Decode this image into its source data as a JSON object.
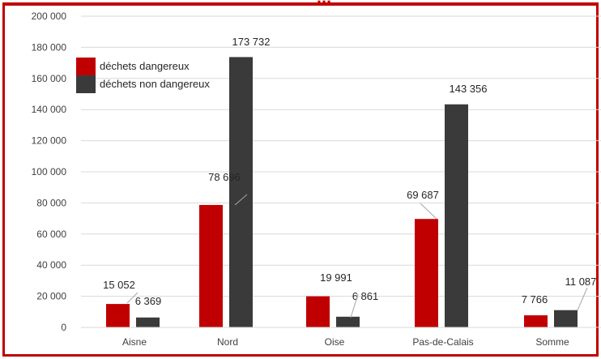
{
  "chart_data": {
    "type": "bar",
    "title": "...",
    "categories": [
      "Aisne",
      "Nord",
      "Oise",
      "Pas-de-Calais",
      "Somme"
    ],
    "series": [
      {
        "name": "déchets dangereux",
        "color": "#c00000",
        "values": [
          15052,
          78696,
          19991,
          69687,
          7766
        ]
      },
      {
        "name": "déchets non dangereux",
        "color": "#3a3a3a",
        "values": [
          6369,
          173732,
          6861,
          143356,
          11087
        ]
      }
    ],
    "value_labels": [
      [
        "15 052",
        "78 696",
        "19 991",
        "69 687",
        "7 766"
      ],
      [
        "6 369",
        "173 732",
        "6 861",
        "143 356",
        "11 087"
      ]
    ],
    "y_ticks": [
      {
        "value": 0,
        "label": "0"
      },
      {
        "value": 20000,
        "label": "20 000"
      },
      {
        "value": 40000,
        "label": "40 000"
      },
      {
        "value": 60000,
        "label": "60 000"
      },
      {
        "value": 80000,
        "label": "80 000"
      },
      {
        "value": 100000,
        "label": "100 000"
      },
      {
        "value": 120000,
        "label": "120 000"
      },
      {
        "value": 140000,
        "label": "140 000"
      },
      {
        "value": 160000,
        "label": "160 000"
      },
      {
        "value": 180000,
        "label": "180 000"
      },
      {
        "value": 200000,
        "label": "200 000"
      }
    ],
    "ylim": [
      0,
      200000
    ],
    "grid": true,
    "legend_position": "top-left",
    "xlabel": "",
    "ylabel": ""
  }
}
